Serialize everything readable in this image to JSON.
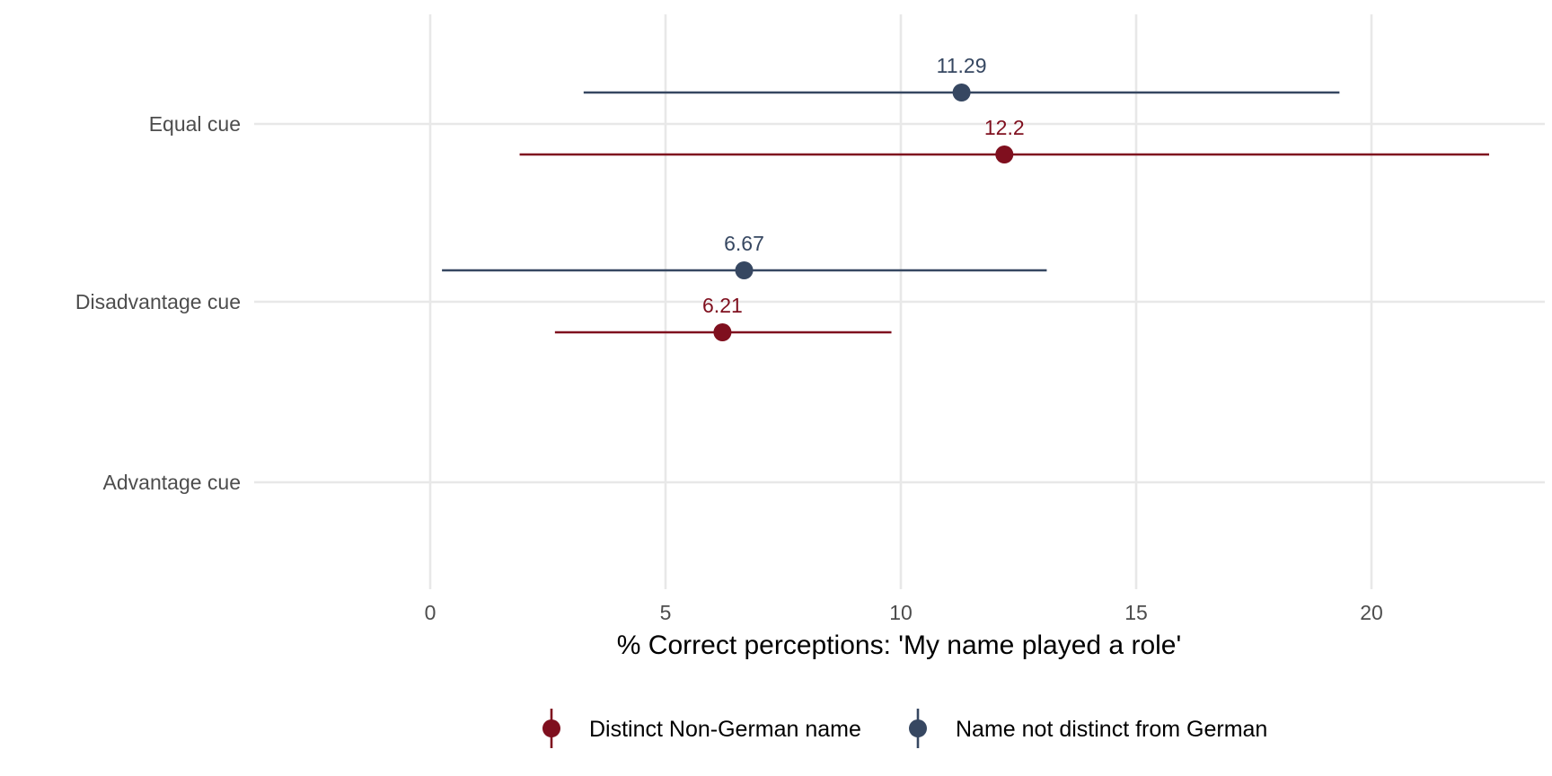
{
  "chart_data": {
    "type": "errorbar",
    "orientation": "horizontal",
    "title": "",
    "xlabel": "% Correct perceptions: 'My name played a role'",
    "ylabel": "",
    "categories": [
      "Equal cue",
      "Disadvantage cue",
      "Advantage cue"
    ],
    "x_ticks": [
      0,
      5,
      10,
      15,
      20
    ],
    "xlim": [
      -3.9,
      23.8
    ],
    "grid": true,
    "legend_position": "bottom",
    "series": [
      {
        "name": "Distinct Non-German name",
        "color": "#7f0f1e",
        "points": [
          {
            "category": "Equal cue",
            "value": 12.2,
            "lower": 1.9,
            "upper": 22.5,
            "label": "12.2"
          },
          {
            "category": "Disadvantage cue",
            "value": 6.21,
            "lower": 2.65,
            "upper": 9.8,
            "label": "6.21"
          }
        ]
      },
      {
        "name": "Name not distinct from German",
        "color": "#364761",
        "points": [
          {
            "category": "Equal cue",
            "value": 11.29,
            "lower": 3.26,
            "upper": 19.32,
            "label": "11.29"
          },
          {
            "category": "Disadvantage cue",
            "value": 6.67,
            "lower": 0.25,
            "upper": 13.1,
            "label": "6.67"
          }
        ]
      }
    ]
  }
}
